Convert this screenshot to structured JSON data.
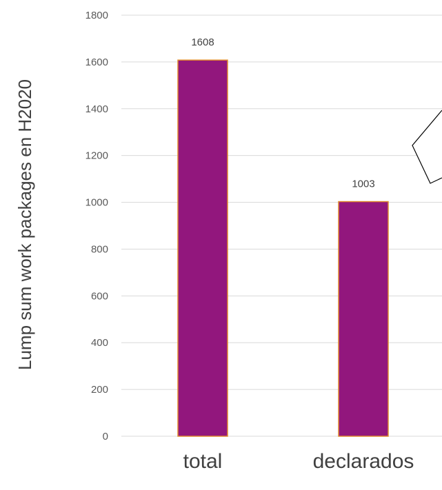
{
  "chart_data": {
    "type": "bar",
    "categories": [
      "total",
      "declarados"
    ],
    "values": [
      1608,
      1003
    ],
    "data_labels": [
      "1608",
      "1003"
    ],
    "ylabel": "Lump sum work packages en H2020",
    "ylim": [
      0,
      1800
    ],
    "yticks": [
      0,
      200,
      400,
      600,
      800,
      1000,
      1200,
      1400,
      1600,
      1800
    ],
    "grid": true,
    "colors": {
      "bar_fill": "#92177D",
      "bar_stroke": "#E08A2E",
      "gridline": "#D9D9D9"
    }
  }
}
